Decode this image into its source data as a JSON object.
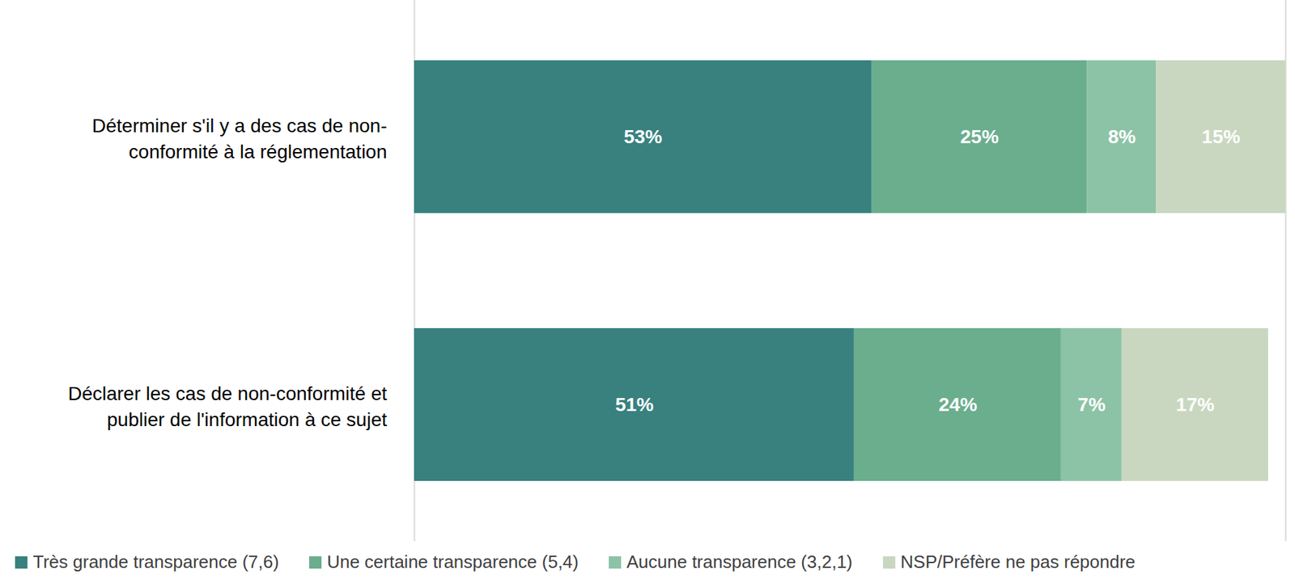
{
  "chart_data": {
    "type": "bar",
    "orientation": "horizontal",
    "stacked": true,
    "data_labels": true,
    "tick_labels": "y",
    "legend": "bottom",
    "xlim": [
      0,
      101
    ],
    "categories": [
      "Déterminer s'il y a des cas de non-\nconformité à la réglementation",
      "Déclarer les cas de non-conformité et\npublier de l'information à ce sujet"
    ],
    "series": [
      {
        "name": "Très grande transparence (7,6)",
        "color": "#38817f",
        "values": [
          53,
          51
        ],
        "value_labels": [
          "53%",
          "51%"
        ]
      },
      {
        "name": "Une certaine transparence (5,4)",
        "color": "#6aae8e",
        "values": [
          25,
          24
        ],
        "value_labels": [
          "25%",
          "24%"
        ]
      },
      {
        "name": "Aucune transparence (3,2,1)",
        "color": "#8cc3a6",
        "values": [
          8,
          7
        ],
        "value_labels": [
          "8%",
          "7%"
        ]
      },
      {
        "name": "NSP/Préfère ne pas répondre",
        "color": "#c9d7c0",
        "values": [
          15,
          17
        ],
        "value_labels": [
          "15%",
          "17%"
        ]
      }
    ]
  }
}
